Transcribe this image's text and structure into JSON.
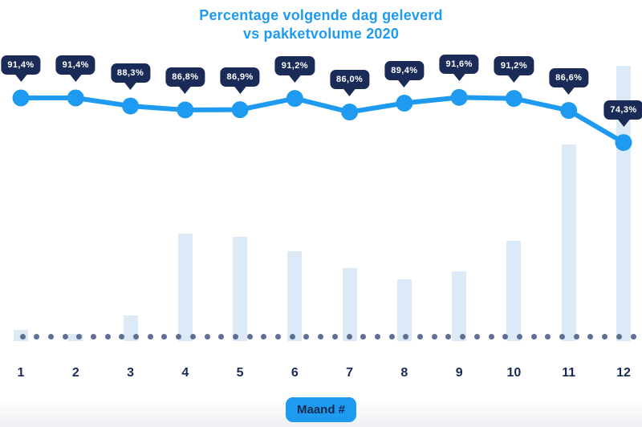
{
  "chart": {
    "title_line1": "Percentage volgende dag geleverd",
    "title_line2": "vs pakketvolume 2020",
    "xlabel": "Maand #"
  },
  "colors": {
    "accent_blue": "#1E9BF0",
    "tooltip_navy": "#1B2B57",
    "bar_light_blue": "#DCEAF8",
    "dot_slate": "#5D6F93",
    "badge_text_navy": "#13294F",
    "bottom_fade_gray": "#EEF0F3"
  },
  "chart_data": {
    "type": "combo",
    "title": "Percentage volgende dag geleverd vs pakketvolume 2020",
    "xlabel": "Maand #",
    "ylabel": "",
    "categories": [
      "1",
      "2",
      "3",
      "4",
      "5",
      "6",
      "7",
      "8",
      "9",
      "10",
      "11",
      "12"
    ],
    "legend": "none",
    "grid": "none",
    "series": [
      {
        "name": "Percentage volgende dag geleverd",
        "type": "line",
        "unit": "%",
        "values": [
          91.4,
          91.4,
          88.3,
          86.8,
          86.9,
          91.2,
          86.0,
          89.4,
          91.6,
          91.2,
          86.6,
          74.3
        ],
        "labels": [
          "91,4%",
          "91,4%",
          "88,3%",
          "86,8%",
          "86,9%",
          "91,2%",
          "86,0%",
          "89,4%",
          "91,6%",
          "91,2%",
          "86,6%",
          "74,3%"
        ],
        "label_style": "dark tooltip badge above each point"
      },
      {
        "name": "Pakketvolume",
        "type": "bar",
        "unit": "relative volume, axis unlabeled (percent of max month)",
        "values": [
          4.1,
          2.6,
          9.3,
          39.1,
          37.9,
          32.7,
          26.5,
          22.4,
          25.4,
          36.4,
          71.4,
          100
        ]
      }
    ],
    "baseline": "dotted horizontal line across full width at x-axis"
  }
}
